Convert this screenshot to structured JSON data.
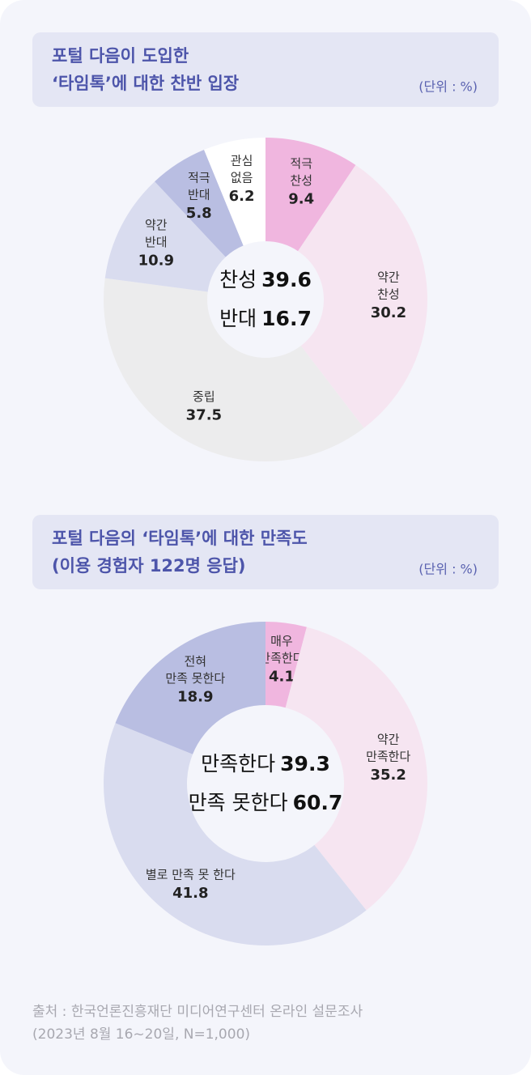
{
  "chart_data": [
    {
      "type": "donut",
      "title": [
        "포털 다음이 도입한",
        "‘타임톡’에 대한 찬반 입장"
      ],
      "unit": "(단위 : %)",
      "categories": [
        [
          "적극",
          "찬성"
        ],
        [
          "약간",
          "찬성"
        ],
        [
          "중립"
        ],
        [
          "약간",
          "반대"
        ],
        [
          "적극",
          "반대"
        ],
        [
          "관심",
          "없음"
        ]
      ],
      "values": [
        9.4,
        30.2,
        37.5,
        10.9,
        5.8,
        6.2
      ],
      "colors": [
        "#f0b6df",
        "#f6e5f1",
        "#ececed",
        "#d9dcef",
        "#b9bee2",
        "#ffffff"
      ],
      "summary": [
        {
          "label": "찬성",
          "value": 39.6
        },
        {
          "label": "반대",
          "value": 16.7
        }
      ]
    },
    {
      "type": "donut",
      "title": [
        "포털 다음의 ‘타임톡’에 대한 만족도",
        "(이용 경험자 122명 응답)"
      ],
      "unit": "(단위 : %)",
      "categories": [
        [
          "매우",
          "만족한다"
        ],
        [
          "약간",
          "만족한다"
        ],
        [
          "별로 만족 못 한다"
        ],
        [
          "전혀",
          "만족 못한다"
        ]
      ],
      "values": [
        4.1,
        35.2,
        41.8,
        18.9
      ],
      "colors": [
        "#f0b6df",
        "#f6e5f1",
        "#d9dcef",
        "#b9bee2"
      ],
      "summary": [
        {
          "label": "만족한다",
          "value": 39.3
        },
        {
          "label": "만족 못한다",
          "value": 60.7
        }
      ]
    }
  ],
  "source": [
    "출처 : 한국언론진흥재단 미디어연구센터 온라인 설문조사",
    "(2023년 8월 16~20일, N=1,000)"
  ]
}
